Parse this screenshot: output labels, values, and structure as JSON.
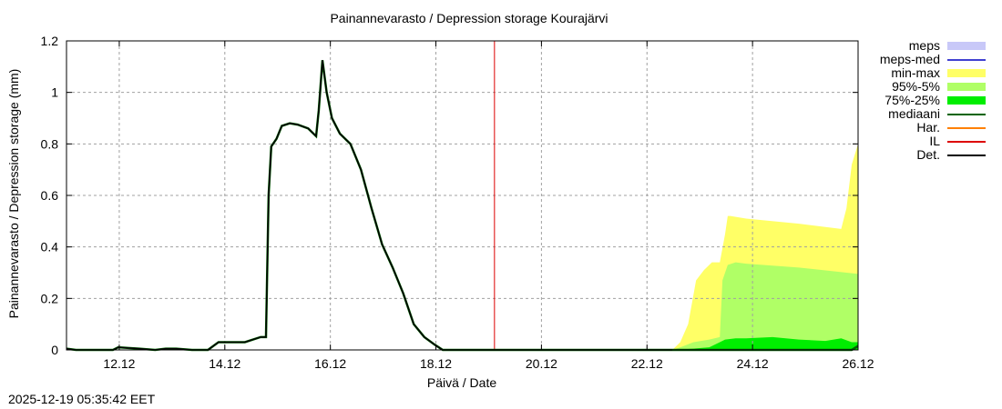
{
  "title": "Painannevarasto / Depression storage    Kourajärvi",
  "timestamp": "2025-12-19 05:35:42 EET",
  "colors": {
    "meps": "#c8c8f8",
    "meps_med": "#4040d0",
    "min_max": "#ffff66",
    "p95_5": "#b0ff66",
    "p75_25": "#00ee00",
    "mediaani": "#006400",
    "har": "#ff8000",
    "il": "#dd0000",
    "det": "#000000"
  },
  "legend": [
    {
      "label": "meps",
      "key": "meps",
      "style": "band"
    },
    {
      "label": "meps-med",
      "key": "meps_med",
      "style": "line"
    },
    {
      "label": "min-max",
      "key": "min_max",
      "style": "band"
    },
    {
      "label": "95%-5%",
      "key": "p95_5",
      "style": "band"
    },
    {
      "label": "75%-25%",
      "key": "p75_25",
      "style": "band"
    },
    {
      "label": "mediaani",
      "key": "mediaani",
      "style": "line"
    },
    {
      "label": "Har.",
      "key": "har",
      "style": "line"
    },
    {
      "label": "IL",
      "key": "il",
      "style": "line"
    },
    {
      "label": "Det.",
      "key": "det",
      "style": "line"
    }
  ],
  "chart_data": {
    "type": "line",
    "title": "Painannevarasto / Depression storage    Kourajärvi",
    "xlabel": "Päivä / Date",
    "ylabel": "Painannevarasto / Depression storage (mm)",
    "ylim": [
      0,
      1.2
    ],
    "xlim_days": [
      11.12,
      26.12
    ],
    "grid": true,
    "legend_position": "right-outside",
    "y_ticks": [
      "0",
      "0.2",
      "0.4",
      "0.6",
      "0.8",
      "1",
      "1.2"
    ],
    "x_ticks": [
      "12.12",
      "14.12",
      "16.12",
      "18.12",
      "20.12",
      "22.12",
      "24.12",
      "26.12"
    ],
    "current_time_marker": {
      "label": "IL",
      "x_day": 19.23
    },
    "series": [
      {
        "name": "Det.",
        "x_day": [
          11.12,
          11.3,
          12.0,
          12.1,
          12.5,
          12.8,
          13.0,
          13.2,
          13.5,
          13.8,
          14.0,
          14.3,
          14.5,
          14.8,
          14.9,
          14.95,
          15.0,
          15.1,
          15.2,
          15.35,
          15.5,
          15.7,
          15.85,
          15.9,
          15.97,
          16.05,
          16.15,
          16.3,
          16.5,
          16.7,
          16.9,
          17.1,
          17.3,
          17.5,
          17.7,
          17.9,
          18.1,
          18.25,
          18.4,
          19.23,
          22.5,
          24.0,
          26.0,
          26.12
        ],
        "y": [
          0.005,
          0.0,
          0.0,
          0.01,
          0.005,
          0.0,
          0.005,
          0.005,
          0.0,
          0.0,
          0.03,
          0.03,
          0.03,
          0.05,
          0.05,
          0.6,
          0.79,
          0.82,
          0.87,
          0.88,
          0.875,
          0.86,
          0.83,
          0.93,
          1.125,
          1.0,
          0.9,
          0.84,
          0.8,
          0.7,
          0.55,
          0.41,
          0.32,
          0.22,
          0.1,
          0.05,
          0.02,
          0.0,
          0.0,
          0.0,
          0.0,
          0.0,
          0.0,
          0.015
        ]
      },
      {
        "name": "min-max",
        "x_day": [
          22.6,
          22.75,
          22.9,
          23.05,
          23.2,
          23.35,
          23.5,
          23.6,
          23.65,
          23.7,
          24.0,
          25.0,
          25.8,
          25.9,
          26.0,
          26.12
        ],
        "low": [
          0,
          0,
          0,
          0,
          0,
          0,
          0,
          0,
          0,
          0,
          0,
          0,
          0,
          0,
          0,
          0
        ],
        "high": [
          0.0,
          0.03,
          0.1,
          0.27,
          0.31,
          0.34,
          0.34,
          0.45,
          0.52,
          0.52,
          0.51,
          0.49,
          0.47,
          0.55,
          0.72,
          0.8
        ]
      },
      {
        "name": "95%-5%",
        "x_day": [
          22.6,
          22.75,
          23.0,
          23.3,
          23.5,
          23.55,
          23.65,
          23.8,
          24.0,
          25.0,
          26.12
        ],
        "low": [
          0,
          0,
          0,
          0,
          0,
          0,
          0,
          0,
          0,
          0,
          0
        ],
        "high": [
          0.0,
          0.01,
          0.03,
          0.04,
          0.05,
          0.27,
          0.33,
          0.34,
          0.335,
          0.32,
          0.295
        ]
      },
      {
        "name": "75%-25%",
        "x_day": [
          22.6,
          23.0,
          23.3,
          23.5,
          23.6,
          23.8,
          24.0,
          24.5,
          25.0,
          25.5,
          25.8,
          26.0,
          26.12
        ],
        "low": [
          0,
          0,
          0,
          0,
          0,
          0,
          0,
          0,
          0,
          0,
          0,
          0,
          0
        ],
        "high": [
          0.0,
          0.005,
          0.01,
          0.03,
          0.04,
          0.045,
          0.045,
          0.05,
          0.04,
          0.035,
          0.045,
          0.03,
          0.03
        ]
      },
      {
        "name": "mediaani",
        "x_day": [
          22.6,
          24.0,
          26.0,
          26.12
        ],
        "y": [
          0.0,
          0.0,
          0.0,
          0.015
        ]
      }
    ]
  }
}
